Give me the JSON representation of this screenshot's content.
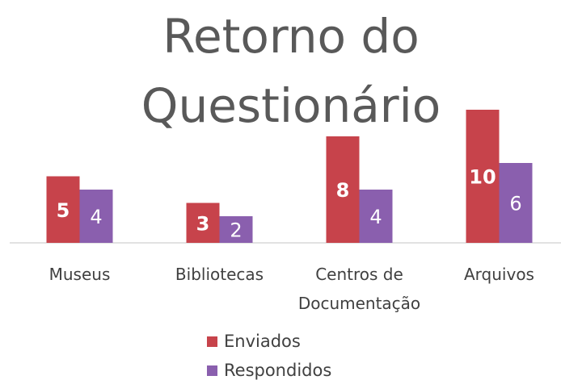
{
  "chart_data": {
    "type": "bar",
    "title": "Retorno do Questionário",
    "categories": [
      "Museus",
      "Bibliotecas",
      "Centros de Documentação",
      "Arquivos"
    ],
    "series": [
      {
        "name": "Enviados",
        "color": "#c7434b",
        "values": [
          5,
          3,
          8,
          10
        ]
      },
      {
        "name": "Respondidos",
        "color": "#8a5fae",
        "values": [
          4,
          2,
          4,
          6
        ]
      }
    ],
    "ylim": [
      0,
      10
    ],
    "legend": "bottom"
  }
}
